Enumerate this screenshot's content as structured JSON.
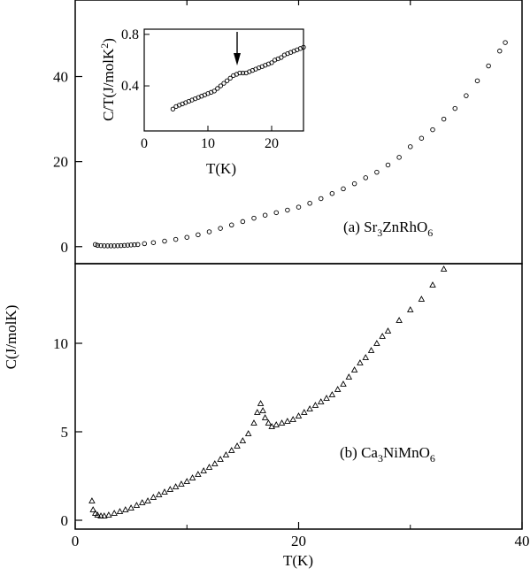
{
  "figure": {
    "x_title_text": "T(K)",
    "y_title_main": "C(J/molK)",
    "inset_x_title": "T(K)",
    "inset_y_title": "C/T(J/molK",
    "inset_y_title_sup": "2",
    "inset_y_title_end": ")",
    "label_a_prefix": "(a) Sr",
    "label_a_sub1": "3",
    "label_a_mid": "ZnRhO",
    "label_a_sub2": "6",
    "label_b_prefix": "(b) Ca",
    "label_b_sub1": "3",
    "label_b_mid": "NiMnO",
    "label_b_sub2": "6"
  },
  "chart_data": [
    {
      "id": "panel-a",
      "type": "scatter",
      "marker": "circle",
      "xlim": [
        0,
        40
      ],
      "ylim": [
        -4,
        58
      ],
      "yticks": [
        0,
        20,
        40
      ],
      "xticks": [
        0,
        20,
        40
      ],
      "series": [
        {
          "name": "(a) Sr3ZnRhO6",
          "points": [
            [
              1.8,
              0.5
            ],
            [
              2.0,
              0.3
            ],
            [
              2.3,
              0.25
            ],
            [
              2.6,
              0.2
            ],
            [
              2.9,
              0.2
            ],
            [
              3.2,
              0.2
            ],
            [
              3.5,
              0.2
            ],
            [
              3.8,
              0.22
            ],
            [
              4.1,
              0.25
            ],
            [
              4.4,
              0.3
            ],
            [
              4.7,
              0.35
            ],
            [
              5.0,
              0.4
            ],
            [
              5.3,
              0.45
            ],
            [
              5.6,
              0.5
            ],
            [
              6.2,
              0.7
            ],
            [
              7.0,
              0.95
            ],
            [
              8.0,
              1.3
            ],
            [
              9.0,
              1.7
            ],
            [
              10.0,
              2.2
            ],
            [
              11.0,
              2.8
            ],
            [
              12.0,
              3.5
            ],
            [
              13.0,
              4.3
            ],
            [
              14.0,
              5.1
            ],
            [
              15.0,
              5.9
            ],
            [
              16.0,
              6.7
            ],
            [
              17.0,
              7.4
            ],
            [
              18.0,
              8.0
            ],
            [
              19.0,
              8.6
            ],
            [
              20.0,
              9.3
            ],
            [
              21.0,
              10.2
            ],
            [
              22.0,
              11.3
            ],
            [
              23.0,
              12.5
            ],
            [
              24.0,
              13.6
            ],
            [
              25.0,
              14.8
            ],
            [
              26.0,
              16.2
            ],
            [
              27.0,
              17.5
            ],
            [
              28.0,
              19.2
            ],
            [
              29.0,
              21.0
            ],
            [
              30.0,
              23.5
            ],
            [
              31.0,
              25.5
            ],
            [
              32.0,
              27.5
            ],
            [
              33.0,
              30.0
            ],
            [
              34.0,
              32.5
            ],
            [
              35.0,
              35.5
            ],
            [
              36.0,
              39.0
            ],
            [
              37.0,
              42.5
            ],
            [
              38.0,
              46.0
            ],
            [
              38.5,
              48.0
            ]
          ]
        }
      ]
    },
    {
      "id": "panel-a-inset",
      "type": "scatter",
      "marker": "circle",
      "xlim": [
        0,
        25
      ],
      "ylim": [
        0.05,
        0.84
      ],
      "xticks": [
        0,
        10,
        20
      ],
      "yticks": [
        0.4,
        0.8
      ],
      "arrow_at_T": 15,
      "series": [
        {
          "name": "C/T",
          "points": [
            [
              4.5,
              0.22
            ],
            [
              5.0,
              0.24
            ],
            [
              5.5,
              0.25
            ],
            [
              6.0,
              0.26
            ],
            [
              6.5,
              0.27
            ],
            [
              7.0,
              0.28
            ],
            [
              7.5,
              0.29
            ],
            [
              8.0,
              0.3
            ],
            [
              8.5,
              0.31
            ],
            [
              9.0,
              0.32
            ],
            [
              9.5,
              0.33
            ],
            [
              10.0,
              0.34
            ],
            [
              10.5,
              0.35
            ],
            [
              11.0,
              0.36
            ],
            [
              11.5,
              0.38
            ],
            [
              12.0,
              0.4
            ],
            [
              12.5,
              0.42
            ],
            [
              13.0,
              0.44
            ],
            [
              13.5,
              0.46
            ],
            [
              14.0,
              0.48
            ],
            [
              14.5,
              0.49
            ],
            [
              15.0,
              0.5
            ],
            [
              15.5,
              0.5
            ],
            [
              16.0,
              0.5
            ],
            [
              16.5,
              0.51
            ],
            [
              17.0,
              0.52
            ],
            [
              17.5,
              0.53
            ],
            [
              18.0,
              0.54
            ],
            [
              18.5,
              0.55
            ],
            [
              19.0,
              0.56
            ],
            [
              19.5,
              0.57
            ],
            [
              20.0,
              0.58
            ],
            [
              20.5,
              0.6
            ],
            [
              21.0,
              0.61
            ],
            [
              21.5,
              0.62
            ],
            [
              22.0,
              0.64
            ],
            [
              22.5,
              0.65
            ],
            [
              23.0,
              0.66
            ],
            [
              23.5,
              0.67
            ],
            [
              24.0,
              0.68
            ],
            [
              24.5,
              0.69
            ],
            [
              25.0,
              0.7
            ]
          ]
        }
      ]
    },
    {
      "id": "panel-b",
      "type": "scatter",
      "marker": "triangle",
      "xlim": [
        0,
        40
      ],
      "ylim": [
        -0.5,
        14.5
      ],
      "yticks": [
        0,
        5,
        10
      ],
      "xticks": [
        0,
        20,
        40
      ],
      "xlabel": "T(K)",
      "ylabel": "C(J/molK)",
      "series": [
        {
          "name": "(b) Ca3NiMnO6",
          "points": [
            [
              1.5,
              1.1
            ],
            [
              1.6,
              0.6
            ],
            [
              1.8,
              0.4
            ],
            [
              2.0,
              0.3
            ],
            [
              2.3,
              0.25
            ],
            [
              2.6,
              0.25
            ],
            [
              3.0,
              0.3
            ],
            [
              3.5,
              0.4
            ],
            [
              4.0,
              0.5
            ],
            [
              4.5,
              0.6
            ],
            [
              5.0,
              0.7
            ],
            [
              5.5,
              0.85
            ],
            [
              6.0,
              1.0
            ],
            [
              6.5,
              1.1
            ],
            [
              7.0,
              1.3
            ],
            [
              7.5,
              1.45
            ],
            [
              8.0,
              1.6
            ],
            [
              8.5,
              1.75
            ],
            [
              9.0,
              1.9
            ],
            [
              9.5,
              2.05
            ],
            [
              10.0,
              2.2
            ],
            [
              10.5,
              2.4
            ],
            [
              11.0,
              2.6
            ],
            [
              11.5,
              2.8
            ],
            [
              12.0,
              3.0
            ],
            [
              12.5,
              3.2
            ],
            [
              13.0,
              3.45
            ],
            [
              13.5,
              3.7
            ],
            [
              14.0,
              3.95
            ],
            [
              14.5,
              4.2
            ],
            [
              15.0,
              4.5
            ],
            [
              15.5,
              4.9
            ],
            [
              16.0,
              5.5
            ],
            [
              16.3,
              6.1
            ],
            [
              16.6,
              6.6
            ],
            [
              16.8,
              6.2
            ],
            [
              17.0,
              5.8
            ],
            [
              17.3,
              5.5
            ],
            [
              17.6,
              5.3
            ],
            [
              18.0,
              5.4
            ],
            [
              18.5,
              5.5
            ],
            [
              19.0,
              5.6
            ],
            [
              19.5,
              5.7
            ],
            [
              20.0,
              5.9
            ],
            [
              20.5,
              6.1
            ],
            [
              21.0,
              6.3
            ],
            [
              21.5,
              6.5
            ],
            [
              22.0,
              6.7
            ],
            [
              22.5,
              6.9
            ],
            [
              23.0,
              7.1
            ],
            [
              23.5,
              7.4
            ],
            [
              24.0,
              7.7
            ],
            [
              24.5,
              8.1
            ],
            [
              25.0,
              8.5
            ],
            [
              25.5,
              8.9
            ],
            [
              26.0,
              9.2
            ],
            [
              26.5,
              9.6
            ],
            [
              27.0,
              10.0
            ],
            [
              27.5,
              10.4
            ],
            [
              28.0,
              10.7
            ],
            [
              29.0,
              11.3
            ],
            [
              30.0,
              11.9
            ],
            [
              31.0,
              12.5
            ],
            [
              32.0,
              13.3
            ],
            [
              33.0,
              14.2
            ]
          ]
        }
      ]
    }
  ]
}
